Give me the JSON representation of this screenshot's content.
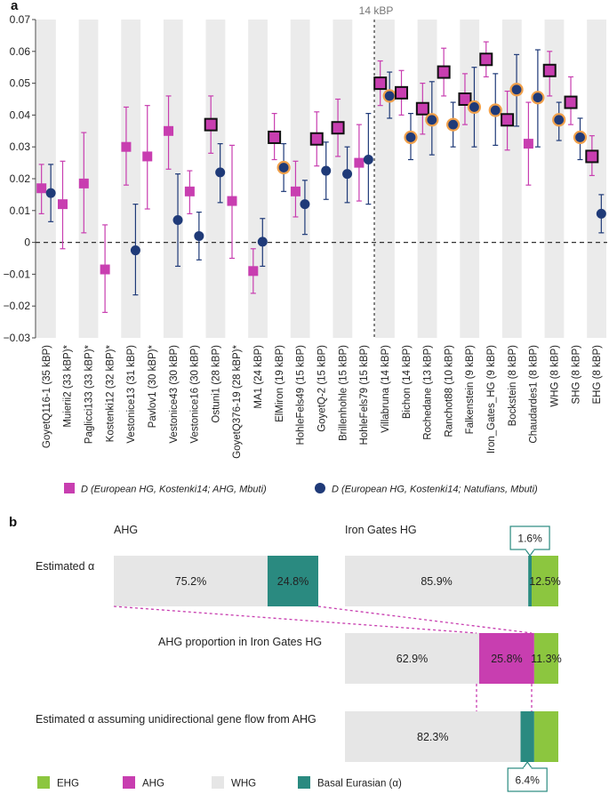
{
  "chart_data": [
    {
      "type": "scatter",
      "panel_label": "a",
      "ylim": [
        -0.03,
        0.07
      ],
      "yticks": [
        -0.03,
        -0.02,
        -0.01,
        0,
        0.01,
        0.02,
        0.03,
        0.04,
        0.05,
        0.06,
        0.07
      ],
      "ytick_labels": [
        "−0.03",
        "−0.02",
        "−0.01",
        "0",
        "0.01",
        "0.02",
        "0.03",
        "0.04",
        "0.05",
        "0.06",
        "0.07"
      ],
      "categories": [
        "GoyetQ116-1 (35 kBP)",
        "Muierii2 (33 kBP)*",
        "Paglicci133 (33 kBP)*",
        "Kostenki12 (32 kBP)*",
        "Vestonice13 (31 kBP)",
        "Pavlov1 (30 kBP)*",
        "Vestonice43 (30 kBP)",
        "Vestonice16 (30 kBP)",
        "Ostuni1 (28 kBP)",
        "GoyetQ376-19 (28 kBP)*",
        "MA1 (24 kBP)",
        "ElMiron (19 kBP)",
        "HohleFels49 (15 kBP)",
        "GoyetQ-2 (15 kBP)",
        "Brillenhohle (15 kBP)",
        "HohleFels79 (15 kBP)",
        "Villabruna (14 kBP)",
        "Bichon (14 kBP)",
        "Rochedane (13 kBP)",
        "Ranchot88 (10 kBP)",
        "Falkenstein (9 kBP)",
        "Iron_Gates_HG (9 kBP)",
        "Bockstein (8 kBP)",
        "Chaudardes1 (8 kBP)",
        "WHG (8 kBP)",
        "SHG (8 kBP)",
        "EHG (8 kBP)"
      ],
      "reference_line": {
        "x_after_index": 15,
        "label": "14 kBP"
      },
      "zero_line": 0,
      "series": [
        {
          "name": "D (European HG, Kostenki14; AHG, Mbuti)",
          "marker": "square",
          "color": "#c83eb0",
          "values": [
            0.017,
            0.012,
            0.0185,
            -0.0085,
            0.03,
            0.027,
            0.035,
            0.016,
            0.037,
            0.013,
            -0.009,
            0.033,
            0.016,
            0.0325,
            0.036,
            0.025,
            0.05,
            0.047,
            0.042,
            0.0535,
            0.045,
            0.0575,
            0.0385,
            0.031,
            0.054,
            0.044,
            0.027
          ],
          "err_low": [
            0.009,
            -0.002,
            0.003,
            -0.022,
            0.018,
            0.0105,
            0.023,
            0.009,
            0.028,
            -0.005,
            -0.016,
            0.026,
            0.008,
            0.024,
            0.027,
            0.013,
            0.043,
            0.04,
            0.034,
            0.046,
            0.037,
            0.052,
            0.029,
            0.018,
            0.046,
            0.037,
            0.021
          ],
          "err_high": [
            0.0245,
            0.0255,
            0.0345,
            0.0055,
            0.0425,
            0.043,
            0.046,
            0.0225,
            0.046,
            0.0305,
            -0.002,
            0.0405,
            0.0255,
            0.041,
            0.045,
            0.037,
            0.057,
            0.054,
            0.05,
            0.061,
            0.053,
            0.063,
            0.0475,
            0.044,
            0.06,
            0.052,
            0.0335
          ],
          "outlined": [
            false,
            false,
            false,
            false,
            false,
            false,
            false,
            false,
            true,
            false,
            false,
            true,
            false,
            true,
            true,
            false,
            true,
            true,
            true,
            true,
            true,
            true,
            true,
            false,
            true,
            true,
            true
          ]
        },
        {
          "name": "D (European HG, Kostenki14; Natufians, Mbuti)",
          "marker": "circle",
          "color": "#1f3a78",
          "present": [
            true,
            false,
            false,
            false,
            true,
            false,
            true,
            true,
            true,
            false,
            true,
            true,
            true,
            true,
            true,
            true,
            true,
            true,
            true,
            true,
            true,
            true,
            true,
            true,
            true,
            true,
            true
          ],
          "values": [
            0.0155,
            null,
            null,
            null,
            -0.0025,
            null,
            0.007,
            0.002,
            0.022,
            null,
            0.0002,
            0.0235,
            0.012,
            0.0225,
            0.0215,
            0.026,
            0.046,
            0.033,
            0.0385,
            0.037,
            0.0425,
            0.0415,
            0.048,
            0.0455,
            0.0385,
            0.033,
            0.009
          ],
          "err_low": [
            0.0065,
            null,
            null,
            null,
            -0.0165,
            null,
            -0.0075,
            -0.0055,
            0.0125,
            null,
            -0.0075,
            0.016,
            0.0025,
            0.0135,
            0.0125,
            0.012,
            0.039,
            0.026,
            0.0275,
            0.03,
            0.03,
            0.0305,
            0.0365,
            0.03,
            0.032,
            0.026,
            0.003
          ],
          "err_high": [
            0.0245,
            null,
            null,
            null,
            0.012,
            null,
            0.0215,
            0.0095,
            0.031,
            null,
            0.0075,
            0.031,
            0.0195,
            0.0315,
            0.03,
            0.0405,
            0.0535,
            0.0405,
            0.0505,
            0.044,
            0.055,
            0.053,
            0.059,
            0.0605,
            0.044,
            0.039,
            0.015
          ],
          "outlined": [
            false,
            false,
            false,
            false,
            false,
            false,
            false,
            false,
            false,
            false,
            false,
            true,
            false,
            false,
            false,
            false,
            true,
            true,
            true,
            true,
            true,
            true,
            true,
            true,
            true,
            true,
            false
          ]
        }
      ]
    },
    {
      "type": "bar",
      "panel_label": "b",
      "orientation": "horizontal-stacked",
      "legend": [
        {
          "name": "EHG",
          "color": "#8cc63f"
        },
        {
          "name": "AHG",
          "color": "#c83eb0"
        },
        {
          "name": "WHG",
          "color": "#e6e6e6"
        },
        {
          "name": "Basal Eurasian (α)",
          "color": "#2a8a80"
        }
      ],
      "headers": {
        "left": "AHG",
        "right": "Iron Gates HG"
      },
      "rows": [
        {
          "label": "Estimated α",
          "bars": [
            {
              "segments": [
                {
                  "component": "WHG",
                  "value": 75.2,
                  "label": "75.2%"
                },
                {
                  "component": "Basal Eurasian (α)",
                  "value": 24.8,
                  "label": "24.8%"
                }
              ]
            },
            {
              "segments": [
                {
                  "component": "WHG",
                  "value": 85.9,
                  "label": "85.9%"
                },
                {
                  "component": "Basal Eurasian (α)",
                  "value": 1.6,
                  "label": "1.6%",
                  "callout": true
                },
                {
                  "component": "EHG",
                  "value": 12.5,
                  "label": "12.5%"
                }
              ]
            }
          ]
        },
        {
          "label": "AHG proportion in Iron Gates HG",
          "bars": [
            {
              "segments": [
                {
                  "component": "WHG",
                  "value": 62.9,
                  "label": "62.9%"
                },
                {
                  "component": "AHG",
                  "value": 25.8,
                  "label": "25.8%"
                },
                {
                  "component": "EHG",
                  "value": 11.3,
                  "label": "11.3%"
                }
              ]
            }
          ]
        },
        {
          "label": "Estimated α assuming unidirectional gene flow from AHG",
          "bars": [
            {
              "segments": [
                {
                  "component": "WHG",
                  "value": 82.3,
                  "label": "82.3%"
                },
                {
                  "component": "Basal Eurasian (α)",
                  "value": 6.4,
                  "label": "6.4%",
                  "callout": true
                },
                {
                  "component": "EHG",
                  "value": 11.3,
                  "label": ""
                }
              ]
            }
          ]
        }
      ]
    }
  ]
}
